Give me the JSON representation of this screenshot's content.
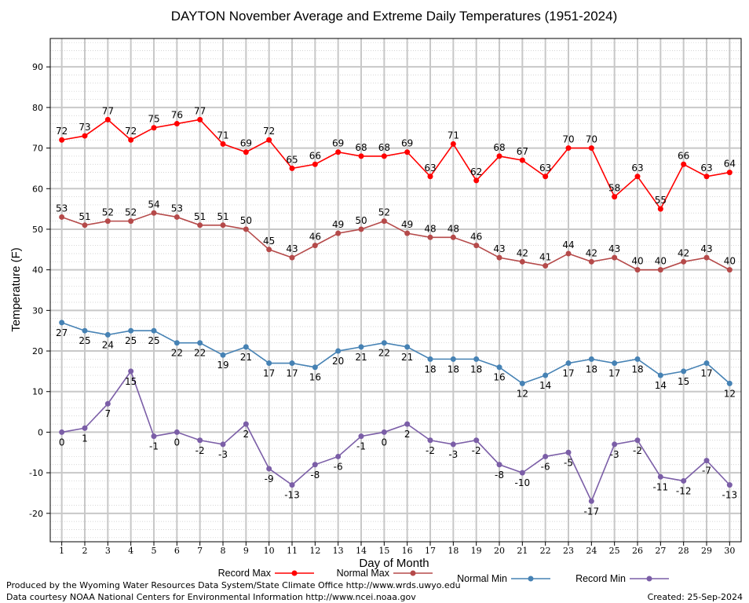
{
  "chart_data": {
    "type": "line",
    "title": "DAYTON November Average and Extreme Daily Temperatures (1951-2024)",
    "xlabel": "Day of Month",
    "ylabel": "Temperature (F)",
    "xlim": [
      0.5,
      30.5
    ],
    "ylim": [
      -27,
      97
    ],
    "yticks": [
      -20,
      -10,
      0,
      10,
      20,
      30,
      40,
      50,
      60,
      70,
      80,
      90
    ],
    "x": [
      1,
      2,
      3,
      4,
      5,
      6,
      7,
      8,
      9,
      10,
      11,
      12,
      13,
      14,
      15,
      16,
      17,
      18,
      19,
      20,
      21,
      22,
      23,
      24,
      25,
      26,
      27,
      28,
      29,
      30
    ],
    "grid": true,
    "legend_position": "bottom",
    "series": [
      {
        "name": "Record Max",
        "color": "#ff0000",
        "values": [
          72,
          73,
          77,
          72,
          75,
          76,
          77,
          71,
          69,
          72,
          65,
          66,
          69,
          68,
          68,
          69,
          63,
          71,
          62,
          68,
          67,
          63,
          70,
          70,
          58,
          63,
          55,
          66,
          63,
          64
        ]
      },
      {
        "name": "Normal Max",
        "color": "#b54a4a",
        "values": [
          53,
          51,
          52,
          52,
          54,
          53,
          51,
          51,
          50,
          45,
          43,
          46,
          49,
          50,
          52,
          49,
          48,
          48,
          46,
          43,
          42,
          41,
          44,
          42,
          43,
          40,
          40,
          42,
          43,
          40
        ]
      },
      {
        "name": "Normal Min",
        "color": "#4682b4",
        "values": [
          27,
          25,
          24,
          25,
          25,
          22,
          22,
          19,
          21,
          17,
          17,
          16,
          20,
          21,
          22,
          21,
          18,
          18,
          18,
          16,
          12,
          14,
          17,
          18,
          17,
          18,
          14,
          15,
          17,
          12
        ]
      },
      {
        "name": "Record Min",
        "color": "#7b5ea7",
        "values": [
          0,
          1,
          7,
          15,
          -1,
          0,
          -2,
          -3,
          2,
          -9,
          -13,
          -8,
          -6,
          -1,
          0,
          2,
          -2,
          -3,
          -2,
          -8,
          -10,
          -6,
          -5,
          -17,
          -3,
          -2,
          -11,
          -12,
          -7,
          -13
        ]
      }
    ]
  },
  "footer": {
    "produced_by": "Produced by the Wyoming Water Resources Data System/State Climate Office http://www.wrds.uwyo.edu",
    "data_courtesy": "Data courtesy NOAA National Centers for Environmental Information http://www.ncei.noaa.gov",
    "created": "Created: 25-Sep-2024"
  }
}
